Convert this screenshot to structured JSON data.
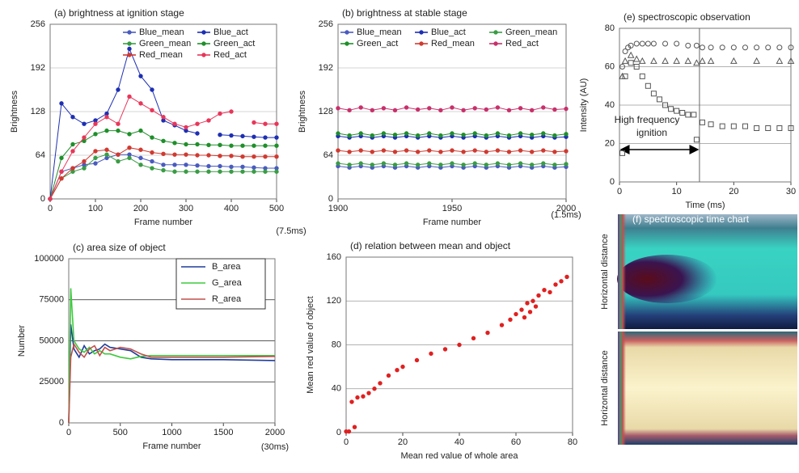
{
  "chart_data": [
    {
      "type": "line",
      "title": "(a) brightness at ignition stage",
      "xlabel": "Frame number",
      "ylabel": "Brightness",
      "note": "(7.5ms)",
      "x": [
        0,
        25,
        50,
        75,
        100,
        125,
        150,
        175,
        200,
        225,
        250,
        275,
        300,
        325,
        350,
        375,
        400,
        425,
        450,
        475,
        500
      ],
      "xlim": [
        0,
        500
      ],
      "xticks": [
        0,
        100,
        200,
        300,
        400,
        500
      ],
      "ylim": [
        0,
        256
      ],
      "yticks": [
        0,
        64,
        128,
        192,
        256
      ],
      "grid": true,
      "grid_color": "#c8c8c8",
      "lines": true,
      "markers": true,
      "legend": "upper right",
      "legend_columns": 2,
      "series": [
        {
          "name": "Blue_mean",
          "color": "#4a5bbf",
          "values": [
            0,
            40,
            45,
            50,
            52,
            60,
            65,
            65,
            60,
            55,
            50,
            50,
            50,
            49,
            48,
            48,
            47,
            47,
            46,
            45,
            45
          ]
        },
        {
          "name": "Blue_act",
          "color": "#1d2fb3",
          "values": [
            0,
            140,
            120,
            110,
            115,
            125,
            160,
            220,
            180,
            160,
            115,
            108,
            100,
            96,
            null,
            94,
            93,
            92,
            91,
            90,
            90
          ]
        },
        {
          "name": "Green_mean",
          "color": "#3a9c45",
          "values": [
            0,
            30,
            40,
            45,
            60,
            65,
            55,
            60,
            50,
            45,
            42,
            40,
            40,
            40,
            40,
            40,
            40,
            40,
            40,
            40,
            40
          ]
        },
        {
          "name": "Green_act",
          "color": "#1f8f2a",
          "values": [
            0,
            60,
            80,
            85,
            95,
            100,
            100,
            95,
            100,
            90,
            85,
            82,
            80,
            80,
            79,
            79,
            78,
            78,
            78,
            78,
            78
          ]
        },
        {
          "name": "Red_mean",
          "color": "#d03a30",
          "values": [
            0,
            30,
            45,
            55,
            70,
            72,
            65,
            75,
            72,
            68,
            66,
            65,
            65,
            64,
            64,
            63,
            63,
            62,
            62,
            62,
            62
          ]
        },
        {
          "name": "Red_act",
          "color": "#e8365a",
          "values": [
            0,
            40,
            70,
            90,
            110,
            120,
            110,
            150,
            140,
            130,
            120,
            110,
            105,
            110,
            115,
            125,
            128,
            null,
            112,
            110,
            110
          ]
        }
      ]
    },
    {
      "type": "line",
      "title": "(b) brightness at stable stage",
      "xlabel": "Frame number",
      "ylabel": "Brightness",
      "note": "(1.5ms)",
      "x": [
        1900,
        1905,
        1910,
        1915,
        1920,
        1925,
        1930,
        1935,
        1940,
        1945,
        1950,
        1955,
        1960,
        1965,
        1970,
        1975,
        1980,
        1985,
        1990,
        1995,
        2000
      ],
      "xlim": [
        1900,
        2000
      ],
      "xticks": [
        1900,
        1950,
        2000
      ],
      "ylim": [
        0,
        256
      ],
      "yticks": [
        0,
        64,
        128,
        192,
        256
      ],
      "grid": true,
      "grid_color": "#c8c8c8",
      "lines": true,
      "markers": true,
      "legend": "upper center",
      "legend_columns": 3,
      "series": [
        {
          "name": "Blue_mean",
          "color": "#4a5bbf",
          "values": [
            48,
            46,
            48,
            46,
            48,
            46,
            48,
            46,
            48,
            46,
            48,
            46,
            48,
            46,
            48,
            46,
            48,
            46,
            48,
            46,
            47
          ]
        },
        {
          "name": "Blue_act",
          "color": "#1d2fb3",
          "values": [
            92,
            90,
            92,
            90,
            92,
            90,
            92,
            90,
            92,
            90,
            92,
            90,
            92,
            90,
            92,
            90,
            92,
            90,
            92,
            90,
            91
          ]
        },
        {
          "name": "Green_mean",
          "color": "#3a9c45",
          "values": [
            52,
            50,
            52,
            50,
            52,
            50,
            52,
            50,
            52,
            50,
            52,
            50,
            52,
            50,
            52,
            50,
            52,
            50,
            52,
            50,
            51
          ]
        },
        {
          "name": "Green_act",
          "color": "#1f8f2a",
          "values": [
            96,
            93,
            96,
            93,
            96,
            94,
            96,
            93,
            96,
            93,
            96,
            94,
            96,
            93,
            96,
            93,
            96,
            94,
            96,
            93,
            95
          ]
        },
        {
          "name": "Red_mean",
          "color": "#d03a30",
          "values": [
            71,
            69,
            71,
            69,
            71,
            69,
            71,
            69,
            71,
            69,
            71,
            69,
            71,
            69,
            71,
            69,
            71,
            69,
            71,
            69,
            70
          ]
        },
        {
          "name": "Red_act",
          "color": "#c8306a",
          "values": [
            133,
            130,
            134,
            130,
            133,
            130,
            134,
            131,
            133,
            130,
            134,
            130,
            133,
            131,
            134,
            130,
            133,
            130,
            134,
            131,
            132
          ]
        }
      ]
    },
    {
      "type": "line",
      "title": "(c) area size of object",
      "xlabel": "Frame number",
      "ylabel": "Number",
      "note": "(30ms)",
      "x": [
        0,
        20,
        50,
        100,
        150,
        200,
        250,
        300,
        350,
        400,
        500,
        600,
        700,
        800,
        1000,
        1500,
        2000
      ],
      "xlim": [
        0,
        2000
      ],
      "xticks": [
        0,
        500,
        1000,
        1500,
        2000
      ],
      "ylim": [
        0,
        100000
      ],
      "yticks": [
        0,
        25000,
        50000,
        75000,
        100000
      ],
      "grid": true,
      "grid_color": "#222222",
      "lines": true,
      "markers": false,
      "legend": "upper right",
      "legend_columns": 1,
      "legend_frame": true,
      "series": [
        {
          "name": "B_area",
          "color": "#1f3c9a",
          "values": [
            0,
            60000,
            45000,
            40000,
            47000,
            42000,
            44000,
            45000,
            48000,
            46000,
            45000,
            44000,
            40000,
            39000,
            38500,
            38500,
            38000
          ]
        },
        {
          "name": "G_area",
          "color": "#3ec93e",
          "values": [
            0,
            82000,
            50000,
            45000,
            43000,
            46000,
            42000,
            44000,
            42000,
            42000,
            40000,
            39000,
            40500,
            41000,
            41000,
            41000,
            41000
          ]
        },
        {
          "name": "R_area",
          "color": "#c0504d",
          "values": [
            0,
            40000,
            48000,
            43000,
            40000,
            45000,
            47000,
            41000,
            46000,
            44000,
            46000,
            45000,
            42000,
            40000,
            40000,
            40000,
            40500
          ]
        }
      ]
    },
    {
      "type": "scatter",
      "title": "(d) relation between mean and object",
      "xlabel": "Mean red value of whole area",
      "ylabel": "Mean red value of object",
      "xlim": [
        0,
        80
      ],
      "xticks": [
        0,
        20,
        40,
        60,
        80
      ],
      "ylim": [
        0,
        160
      ],
      "yticks": [
        0,
        40,
        80,
        120,
        160
      ],
      "grid": true,
      "grid_color": "#999999",
      "markers": true,
      "series": [
        {
          "color": "#e02020",
          "marker": "circle",
          "x": [
            0,
            1,
            3,
            2,
            4,
            6,
            8,
            10,
            12,
            15,
            18,
            20,
            25,
            30,
            35,
            40,
            45,
            50,
            55,
            58,
            60,
            62,
            63,
            64,
            65,
            66,
            67,
            68,
            70,
            72,
            74,
            76,
            78
          ],
          "values": [
            1,
            1,
            5,
            28,
            32,
            33,
            36,
            40,
            45,
            52,
            57,
            60,
            66,
            72,
            76,
            80,
            86,
            91,
            98,
            103,
            108,
            112,
            105,
            118,
            110,
            120,
            115,
            125,
            130,
            128,
            135,
            138,
            142
          ]
        }
      ]
    },
    {
      "type": "scatter",
      "title": "(e) spectroscopic observation",
      "xlabel": "Time (ms)",
      "ylabel": "Intensity (AU)",
      "annotation": [
        "High frequency",
        "ignition"
      ],
      "vline": 14,
      "xlim": [
        0,
        30
      ],
      "xticks": [
        0,
        10,
        20,
        30
      ],
      "ylim": [
        0,
        80
      ],
      "yticks": [
        0,
        20,
        40,
        60,
        80
      ],
      "grid": true,
      "grid_color": "#999999",
      "markers": true,
      "hollow": true,
      "series": [
        {
          "color": "#555555",
          "marker": "circle",
          "x": [
            0.5,
            1,
            1.5,
            2,
            3,
            4,
            5,
            6,
            8,
            10,
            12,
            13.5,
            14.5,
            16,
            18,
            20,
            22,
            24,
            26,
            28,
            30
          ],
          "values": [
            60,
            68,
            70,
            71,
            72,
            72,
            72,
            72,
            72,
            72,
            71,
            71,
            70,
            70,
            70,
            70,
            70,
            70,
            70,
            70,
            70
          ]
        },
        {
          "color": "#555555",
          "marker": "triangle",
          "x": [
            0.5,
            1,
            2,
            3,
            4,
            6,
            8,
            10,
            12,
            13.5,
            14.5,
            16,
            20,
            24,
            28,
            30
          ],
          "values": [
            55,
            63,
            66,
            64,
            63,
            63,
            63,
            63,
            63,
            62,
            63,
            63,
            63,
            63,
            63,
            63
          ]
        },
        {
          "color": "#555555",
          "marker": "square",
          "x": [
            0.5,
            1,
            2,
            3,
            4,
            5,
            6,
            7,
            8,
            9,
            10,
            11,
            12,
            13,
            13.5,
            14.5,
            16,
            18,
            20,
            22,
            24,
            26,
            28,
            30
          ],
          "values": [
            15,
            55,
            62,
            60,
            55,
            50,
            46,
            43,
            40,
            38,
            37,
            36,
            35,
            35,
            22,
            31,
            30,
            29,
            29,
            29,
            28,
            28,
            28,
            28
          ]
        }
      ]
    },
    {
      "type": "image",
      "title": "(f) spectroscopic time chart",
      "ylabels": [
        "Horizontal distance",
        "Horizontal distance"
      ]
    }
  ]
}
